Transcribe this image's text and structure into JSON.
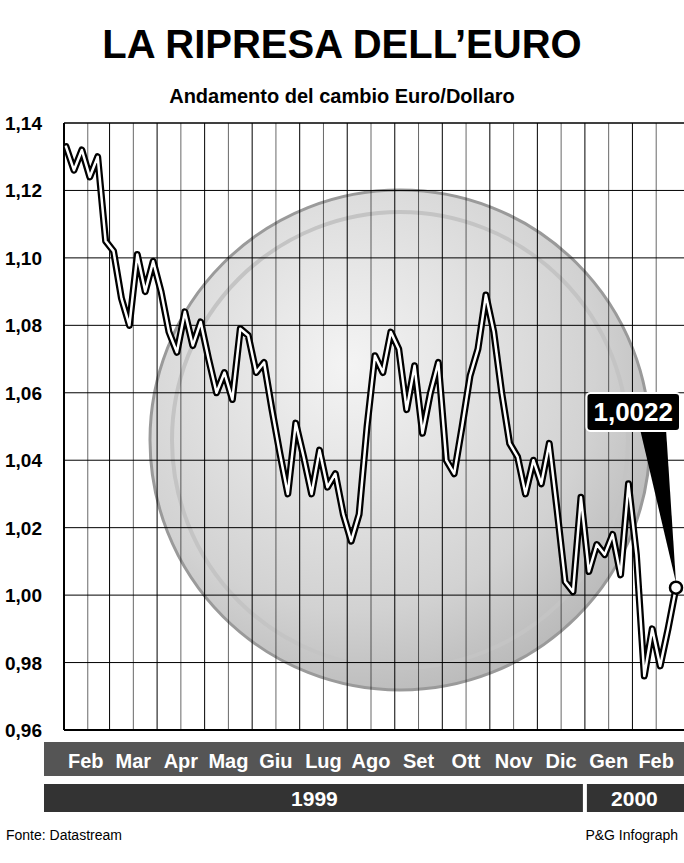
{
  "chart_data": {
    "type": "line",
    "title": "LA RIPRESA DELL’EURO",
    "subtitle": "Andamento del cambio Euro/Dollaro",
    "categories": [
      "Feb",
      null,
      null,
      null,
      null,
      null,
      "Mar",
      null,
      null,
      null,
      null,
      null,
      "Apr",
      null,
      null,
      null,
      null,
      null,
      "Mag",
      null,
      null,
      null,
      null,
      null,
      "Giu",
      null,
      null,
      null,
      null,
      null,
      "Lug",
      null,
      null,
      null,
      null,
      null,
      "Ago",
      null,
      null,
      null,
      null,
      null,
      "Set",
      null,
      null,
      null,
      null,
      null,
      "Ott",
      null,
      null,
      null,
      null,
      null,
      "Nov",
      null,
      null,
      null,
      null,
      null,
      "Dic",
      null,
      null,
      null,
      null,
      null,
      "Gen",
      null,
      null,
      null,
      null,
      null,
      "Feb",
      null,
      null,
      null,
      null,
      null
    ],
    "values": [
      1.133,
      1.126,
      1.132,
      1.124,
      1.13,
      1.105,
      1.102,
      1.088,
      1.08,
      1.101,
      1.09,
      1.099,
      1.09,
      1.078,
      1.072,
      1.084,
      1.074,
      1.081,
      1.07,
      1.06,
      1.066,
      1.058,
      1.079,
      1.077,
      1.066,
      1.069,
      1.055,
      1.042,
      1.03,
      1.051,
      1.041,
      1.03,
      1.043,
      1.032,
      1.036,
      1.024,
      1.016,
      1.024,
      1.05,
      1.071,
      1.066,
      1.078,
      1.073,
      1.055,
      1.068,
      1.048,
      1.06,
      1.069,
      1.04,
      1.036,
      1.05,
      1.065,
      1.073,
      1.089,
      1.078,
      1.06,
      1.045,
      1.041,
      1.03,
      1.04,
      1.033,
      1.045,
      1.025,
      1.004,
      1.001,
      1.029,
      1.007,
      1.015,
      1.012,
      1.018,
      1.006,
      1.033,
      1.012,
      0.976,
      0.99,
      0.979,
      0.99,
      1.0022
    ],
    "color": "#000000",
    "ylim": [
      0.96,
      1.14
    ],
    "yticks": [
      {
        "value": 0.96,
        "label": "0,96"
      },
      {
        "value": 0.98,
        "label": "0,98"
      },
      {
        "value": 1.0,
        "label": "1,00"
      },
      {
        "value": 1.02,
        "label": "1,02"
      },
      {
        "value": 1.04,
        "label": "1,04"
      },
      {
        "value": 1.06,
        "label": "1,06"
      },
      {
        "value": 1.08,
        "label": "1,08"
      },
      {
        "value": 1.1,
        "label": "1,10"
      },
      {
        "value": 1.12,
        "label": "1,12"
      },
      {
        "value": 1.14,
        "label": "1,14"
      }
    ],
    "grid": true,
    "year_labels": [
      "1999",
      "2000"
    ],
    "annotations": [
      {
        "text": "1,0022",
        "value": 1.0022
      }
    ],
    "source": "Fonte: Datastream",
    "credit": "P&G Infograph"
  }
}
